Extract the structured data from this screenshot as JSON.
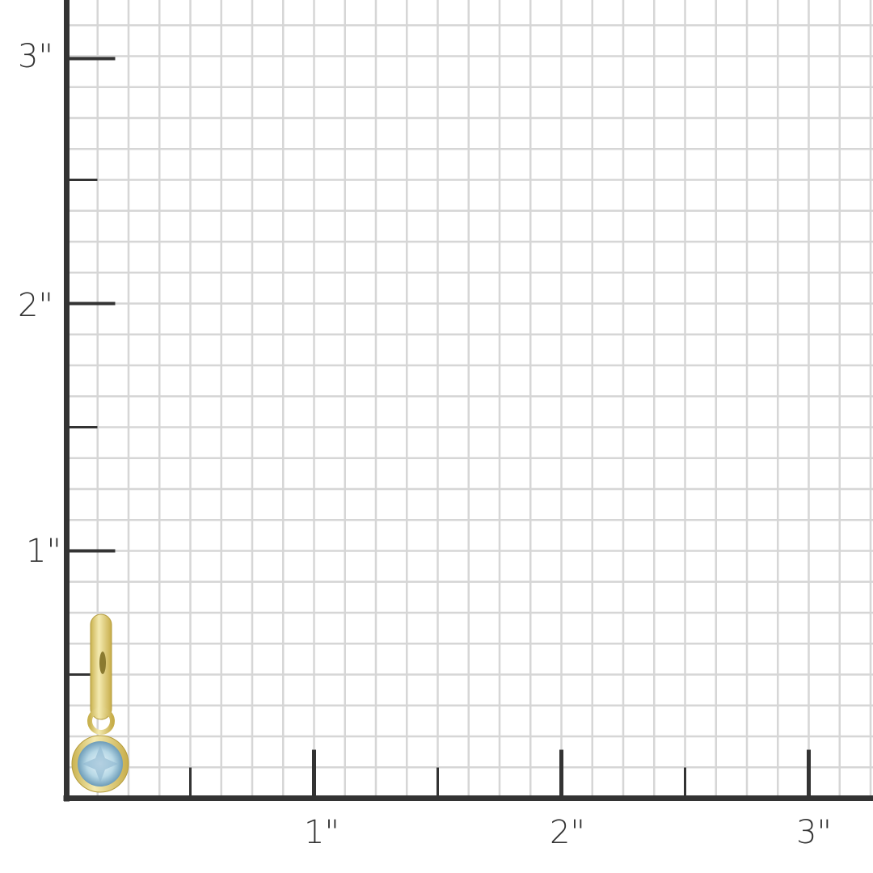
{
  "scale": {
    "unit": "inch",
    "x_labels": [
      "1\"",
      "2\"",
      "3\""
    ],
    "y_labels": [
      "1\"",
      "2\"",
      "3\""
    ],
    "grid_subdivisions_per_inch": 8
  },
  "product": {
    "type": "gold huggie hoop earring with round light blue gemstone bezel charm",
    "height_inches": 0.75
  },
  "colors": {
    "axis": "#333333",
    "grid": "#d6d6d6",
    "gold": "#e3d27a",
    "gem": "#bcdbe8"
  }
}
